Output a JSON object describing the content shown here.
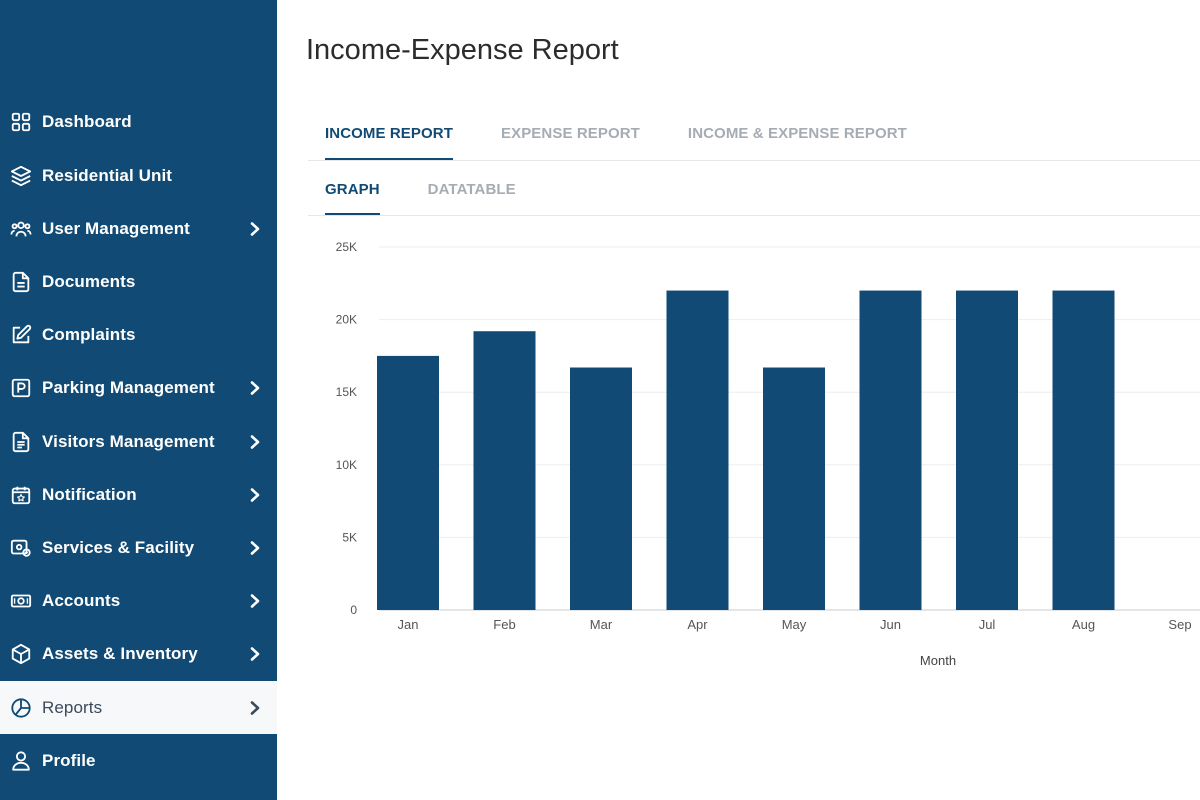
{
  "sidebar": {
    "items": [
      {
        "label": "Dashboard",
        "icon": "dashboard-icon",
        "chevron": false
      },
      {
        "label": "Residential Unit",
        "icon": "layers-icon",
        "chevron": false
      },
      {
        "label": "User Management",
        "icon": "users-icon",
        "chevron": true
      },
      {
        "label": "Documents",
        "icon": "document-icon",
        "chevron": false
      },
      {
        "label": "Complaints",
        "icon": "edit-icon",
        "chevron": false
      },
      {
        "label": "Parking Management",
        "icon": "parking-icon",
        "chevron": true
      },
      {
        "label": "Visitors Management",
        "icon": "clipboard-icon",
        "chevron": true
      },
      {
        "label": "Notification",
        "icon": "calendar-star-icon",
        "chevron": true
      },
      {
        "label": "Services & Facility",
        "icon": "services-icon",
        "chevron": true
      },
      {
        "label": "Accounts",
        "icon": "money-icon",
        "chevron": true
      },
      {
        "label": "Assets & Inventory",
        "icon": "box-icon",
        "chevron": true
      },
      {
        "label": "Reports",
        "icon": "pie-chart-icon",
        "chevron": true,
        "active": true
      },
      {
        "label": "Profile",
        "icon": "user-icon",
        "chevron": false
      }
    ]
  },
  "main": {
    "title": "Income-Expense Report",
    "report_tabs": [
      {
        "label": "INCOME REPORT",
        "active": true
      },
      {
        "label": "EXPENSE REPORT",
        "active": false
      },
      {
        "label": "INCOME & EXPENSE REPORT",
        "active": false
      }
    ],
    "view_tabs": [
      {
        "label": "GRAPH",
        "active": true
      },
      {
        "label": "DATATABLE",
        "active": false
      }
    ]
  },
  "colors": {
    "sidebar": "#114a74",
    "bar": "#114a74",
    "active_item_bg": "#f7f8fa"
  },
  "chart_data": {
    "type": "bar",
    "categories": [
      "Jan",
      "Feb",
      "Mar",
      "Apr",
      "May",
      "Jun",
      "Jul",
      "Aug",
      "Sep"
    ],
    "values": [
      17500,
      19200,
      16700,
      22000,
      16700,
      22000,
      22000,
      22000,
      0
    ],
    "y_ticks": [
      "0",
      "5K",
      "10K",
      "15K",
      "20K",
      "25K"
    ],
    "ylim": [
      0,
      25000
    ],
    "xlabel": "Month",
    "ylabel": "",
    "grid": true,
    "legend": false
  }
}
